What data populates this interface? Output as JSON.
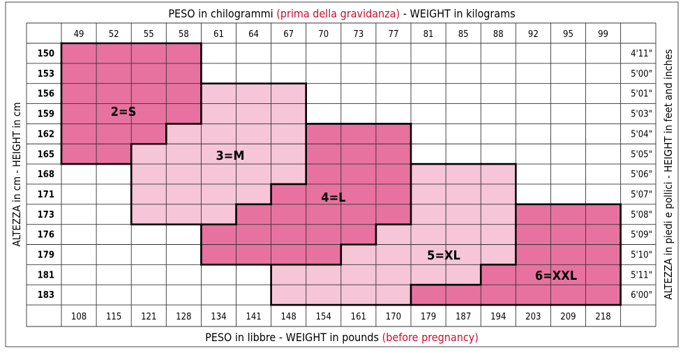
{
  "top_title": {
    "main": "PESO in chilogrammi ",
    "red": "(prima della gravidanza)",
    "tail": " -  WEIGHT in kilograms"
  },
  "bottom_title": {
    "main": "PESO in libbre -  WEIGHT in pounds ",
    "red": "(before pregnancy)"
  },
  "left_title": "ALTEZZA in cm  -  HEIGHT in cm",
  "right_title": "ALTEZZA in piedi e pollici - HEIGHT in feet and inches",
  "colors": {
    "dark_pink": "#e8729f",
    "light_pink": "#f6c5d8",
    "accent_red": "#c8102e",
    "S": "#e8729f",
    "M": "#f6c5d8",
    "L": "#e8729f",
    "XL": "#f6c5d8",
    "XXL": "#e8729f"
  },
  "chart_data": {
    "type": "table",
    "weights_kg": [
      "49",
      "52",
      "55",
      "58",
      "61",
      "64",
      "67",
      "70",
      "73",
      "77",
      "81",
      "85",
      "88",
      "92",
      "95",
      "99"
    ],
    "weights_lb": [
      "108",
      "115",
      "121",
      "128",
      "134",
      "141",
      "148",
      "154",
      "161",
      "170",
      "179",
      "187",
      "194",
      "203",
      "209",
      "218"
    ],
    "heights_cm": [
      "150",
      "153",
      "156",
      "159",
      "162",
      "165",
      "168",
      "171",
      "173",
      "176",
      "179",
      "181",
      "183"
    ],
    "heights_ft": [
      "4'11\"",
      "5'00\"",
      "5'01\"",
      "5'03\"",
      "5'04\"",
      "5'05\"",
      "5'06\"",
      "5'07\"",
      "5'08\"",
      "5'09\"",
      "5'10\"",
      "5'11\"",
      "6'00\""
    ],
    "size_labels": {
      "S": "2=S",
      "M": "3=M",
      "L": "4=L",
      "XL": "5=XL",
      "XXL": "6=XXL"
    },
    "grid": [
      [
        "S",
        "S",
        "S",
        "S",
        "",
        "",
        "",
        "",
        "",
        "",
        "",
        "",
        "",
        "",
        "",
        ""
      ],
      [
        "S",
        "S",
        "S",
        "S",
        "",
        "",
        "",
        "",
        "",
        "",
        "",
        "",
        "",
        "",
        "",
        ""
      ],
      [
        "S",
        "S",
        "S",
        "S",
        "M",
        "M",
        "M",
        "",
        "",
        "",
        "",
        "",
        "",
        "",
        "",
        ""
      ],
      [
        "S",
        "S",
        "S",
        "S",
        "M",
        "M",
        "M",
        "",
        "",
        "",
        "",
        "",
        "",
        "",
        "",
        ""
      ],
      [
        "S",
        "S",
        "S",
        "M",
        "M",
        "M",
        "M",
        "L",
        "L",
        "L",
        "",
        "",
        "",
        "",
        "",
        ""
      ],
      [
        "S",
        "S",
        "M",
        "M",
        "M",
        "M",
        "M",
        "L",
        "L",
        "L",
        "",
        "",
        "",
        "",
        "",
        ""
      ],
      [
        "",
        "",
        "M",
        "M",
        "M",
        "M",
        "M",
        "L",
        "L",
        "L",
        "XL",
        "XL",
        "XL",
        "",
        "",
        ""
      ],
      [
        "",
        "",
        "M",
        "M",
        "M",
        "M",
        "L",
        "L",
        "L",
        "L",
        "XL",
        "XL",
        "XL",
        "",
        "",
        ""
      ],
      [
        "",
        "",
        "M",
        "M",
        "M",
        "L",
        "L",
        "L",
        "L",
        "L",
        "XL",
        "XL",
        "XL",
        "XXL",
        "XXL",
        "XXL"
      ],
      [
        "",
        "",
        "",
        "",
        "L",
        "L",
        "L",
        "L",
        "L",
        "XL",
        "XL",
        "XL",
        "XL",
        "XXL",
        "XXL",
        "XXL"
      ],
      [
        "",
        "",
        "",
        "",
        "L",
        "L",
        "L",
        "L",
        "XL",
        "XL",
        "XL",
        "XL",
        "XL",
        "XXL",
        "XXL",
        "XXL"
      ],
      [
        "",
        "",
        "",
        "",
        "",
        "",
        "XL",
        "XL",
        "XL",
        "XL",
        "XL",
        "XL",
        "XXL",
        "XXL",
        "XXL",
        "XXL"
      ],
      [
        "",
        "",
        "",
        "",
        "",
        "",
        "XL",
        "XL",
        "XL",
        "XL",
        "XXL",
        "XXL",
        "XXL",
        "XXL",
        "XXL",
        "XXL"
      ]
    ]
  }
}
